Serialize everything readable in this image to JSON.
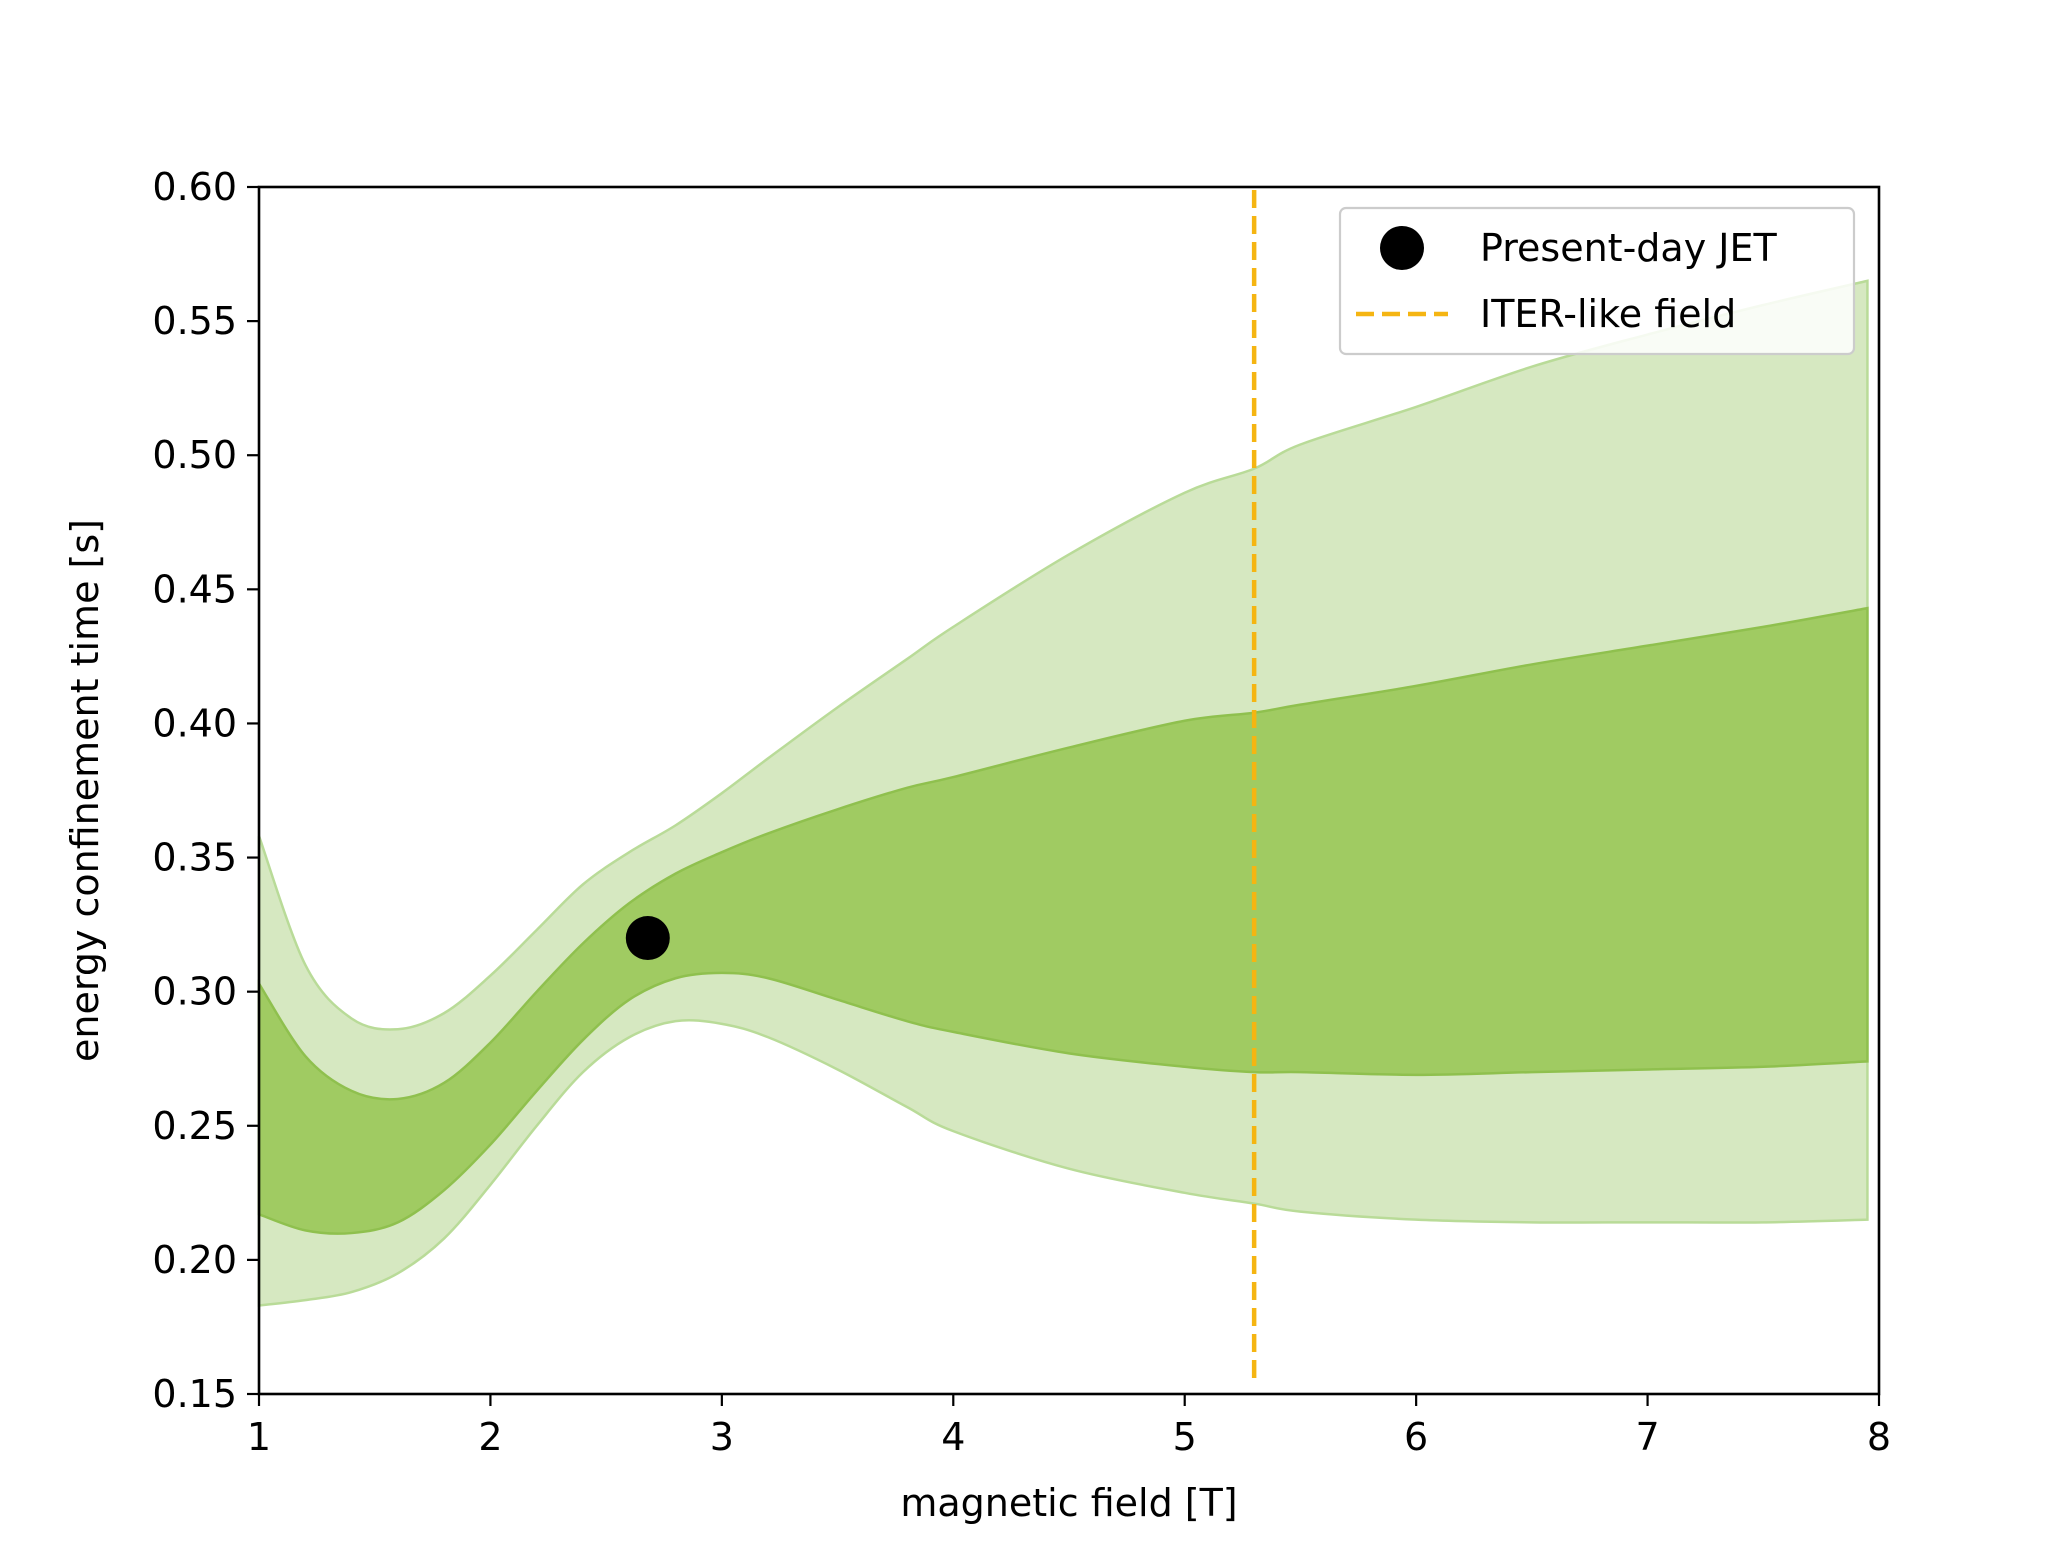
{
  "chart_data": {
    "type": "area",
    "xlabel": "magnetic field [T]",
    "ylabel": "energy confinement time [s]",
    "xlim": [
      1,
      8
    ],
    "ylim": [
      0.15,
      0.6
    ],
    "xticks": [
      "1",
      "2",
      "3",
      "4",
      "5",
      "6",
      "7",
      "8"
    ],
    "yticks": [
      "0.15",
      "0.20",
      "0.25",
      "0.30",
      "0.35",
      "0.40",
      "0.45",
      "0.50",
      "0.55",
      "0.60"
    ],
    "grid": false,
    "legend_position": "top-right",
    "x": [
      1.0,
      1.2,
      1.4,
      1.6,
      1.8,
      2.0,
      2.2,
      2.4,
      2.6,
      2.8,
      3.0,
      3.2,
      3.5,
      3.8,
      4.0,
      4.5,
      5.0,
      5.3,
      5.5,
      6.0,
      6.5,
      7.0,
      7.5,
      7.95
    ],
    "series": [
      {
        "band": "outer",
        "color": "#d6e8c1",
        "edge_color": "#b9db98",
        "upper": [
          0.358,
          0.31,
          0.29,
          0.286,
          0.292,
          0.306,
          0.323,
          0.34,
          0.352,
          0.362,
          0.374,
          0.387,
          0.406,
          0.424,
          0.436,
          0.463,
          0.486,
          0.495,
          0.504,
          0.518,
          0.533,
          0.545,
          0.556,
          0.565
        ],
        "lower": [
          0.183,
          0.185,
          0.188,
          0.195,
          0.208,
          0.228,
          0.25,
          0.27,
          0.283,
          0.289,
          0.288,
          0.283,
          0.271,
          0.257,
          0.248,
          0.234,
          0.225,
          0.221,
          0.218,
          0.215,
          0.214,
          0.214,
          0.214,
          0.215
        ]
      },
      {
        "band": "inner",
        "color": "#a0cb62",
        "edge_color": "#8fc04e",
        "upper": [
          0.303,
          0.276,
          0.263,
          0.26,
          0.266,
          0.281,
          0.3,
          0.318,
          0.333,
          0.344,
          0.352,
          0.359,
          0.368,
          0.376,
          0.38,
          0.391,
          0.401,
          0.404,
          0.407,
          0.414,
          0.422,
          0.429,
          0.436,
          0.443
        ],
        "lower": [
          0.217,
          0.211,
          0.21,
          0.214,
          0.226,
          0.243,
          0.263,
          0.282,
          0.297,
          0.305,
          0.307,
          0.305,
          0.297,
          0.289,
          0.285,
          0.277,
          0.272,
          0.27,
          0.27,
          0.269,
          0.27,
          0.271,
          0.272,
          0.274
        ]
      }
    ],
    "points": [
      {
        "name": "Present-day JET",
        "x": 2.68,
        "y": 0.32,
        "color": "#000000"
      }
    ],
    "vlines": [
      {
        "name": "ITER-like field",
        "x": 5.3,
        "color": "#f5b512",
        "style": "dashed"
      }
    ],
    "legend": [
      {
        "label": "Present-day JET",
        "kind": "marker",
        "color": "#000000"
      },
      {
        "label": "ITER-like field",
        "kind": "dashed-line",
        "color": "#f5b512"
      }
    ]
  }
}
